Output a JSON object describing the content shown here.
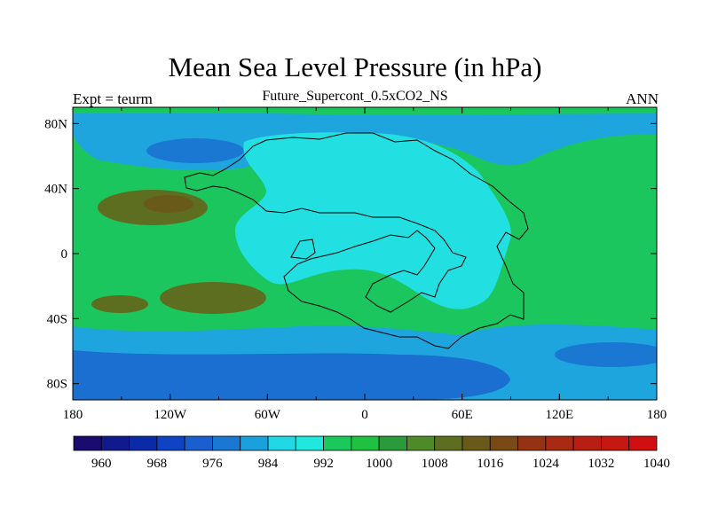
{
  "title": "Mean Sea Level Pressure (in hPa)",
  "subtitle": "Future_Supercont_0.5xCO2_NS",
  "left_string": "Expt = teurm",
  "right_string": "ANN",
  "map": {
    "lat_labels": [
      "80N",
      "40N",
      "0",
      "40S",
      "80S"
    ],
    "lon_labels": [
      "180",
      "120W",
      "60W",
      "0",
      "60E",
      "120E",
      "180"
    ],
    "colorbar_labels": [
      "960",
      "968",
      "976",
      "984",
      "992",
      "1000",
      "1008",
      "1016",
      "1024",
      "1032",
      "1040"
    ],
    "colorbar_colors": [
      "#1a0c6e",
      "#101a8c",
      "#0a2aa8",
      "#0e44c4",
      "#1a5fd0",
      "#1a78d2",
      "#1aa0dc",
      "#20d8e6",
      "#20e8dc",
      "#1ac85c",
      "#20c040",
      "#2a9a3a",
      "#4e8a28",
      "#5e6e20",
      "#6a5a1a",
      "#7a4a16",
      "#963214",
      "#a82a12",
      "#b81e12",
      "#c41810",
      "#d01010"
    ],
    "field_colors": {
      "ocean_base": "#1bc65f",
      "high_lat_band": "#1fa5de",
      "low_pressure": "#1a78d2",
      "deep_low": "#0e55c4",
      "subtropical_high": "#5e6e20",
      "strong_high": "#6a5a1a",
      "continent_low": "#22e0e2"
    }
  }
}
